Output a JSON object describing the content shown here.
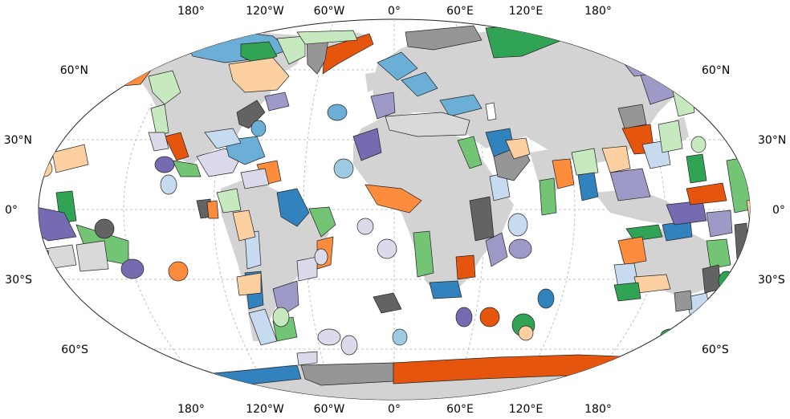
{
  "map": {
    "top_lon_labels": [
      "180°",
      "120°W",
      "60°W",
      "0°",
      "60°E",
      "120°E",
      "180°"
    ],
    "bottom_lon_labels": [
      "180°",
      "120°W",
      "60°W",
      "0°",
      "60°E",
      "120°E",
      "180°"
    ],
    "left_lat_labels": [
      "60°N",
      "30°N",
      "0°",
      "30°S",
      "60°S"
    ],
    "right_lat_labels": [
      "60°N",
      "30°N",
      "0°",
      "30°S",
      "60°S"
    ],
    "colors": {
      "land": "#d3d3d3",
      "orange_dark": "#e6550d",
      "orange": "#fd8d3c",
      "orange_light": "#fdd0a2",
      "blue_dark": "#3182bd",
      "blue": "#6baed6",
      "blue_light": "#c6dbef",
      "green_dark": "#31a354",
      "green": "#74c476",
      "green_light": "#c7e9c0",
      "purple_dark": "#756bb1",
      "purple": "#9e9ac8",
      "purple_light": "#dadaeb",
      "gray_dark": "#636363",
      "gray": "#969696",
      "gray_light": "#d9d9d9"
    }
  }
}
